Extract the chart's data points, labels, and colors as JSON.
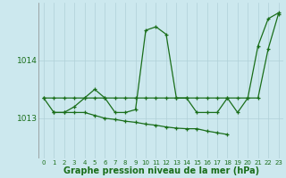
{
  "background_color": "#cce8ee",
  "line_color": "#1a6e1a",
  "grid_color": "#b0d0d8",
  "xlabel": "Graphe pression niveau de la mer (hPa)",
  "xlabel_fontsize": 7,
  "xticks": [
    0,
    1,
    2,
    3,
    4,
    5,
    6,
    7,
    8,
    9,
    10,
    11,
    12,
    13,
    14,
    15,
    16,
    17,
    18,
    19,
    20,
    21,
    22,
    23
  ],
  "ylim": [
    1012.3,
    1015.0
  ],
  "xlim": [
    -0.5,
    23.5
  ],
  "yticks": [
    1013,
    1014
  ],
  "series1_x": [
    0,
    1,
    2,
    3,
    4,
    5,
    6,
    7,
    8,
    9,
    10,
    11,
    12,
    13,
    14,
    15,
    16,
    17,
    18,
    19,
    20,
    21,
    22,
    23
  ],
  "series1_y": [
    1013.35,
    1013.35,
    1013.35,
    1013.35,
    1013.35,
    1013.35,
    1013.35,
    1013.35,
    1013.35,
    1013.35,
    1013.35,
    1013.35,
    1013.35,
    1013.35,
    1013.35,
    1013.35,
    1013.35,
    1013.35,
    1013.35,
    1013.35,
    1013.35,
    1013.35,
    1014.2,
    1014.8
  ],
  "series2_x": [
    0,
    1,
    2,
    3,
    4,
    5,
    6,
    7,
    8,
    9,
    10,
    11,
    12,
    13,
    14,
    15,
    16,
    17,
    18,
    19,
    20,
    21,
    22,
    23
  ],
  "series2_y": [
    1013.35,
    1013.1,
    1013.1,
    1013.2,
    1013.35,
    1013.5,
    1013.35,
    1013.1,
    1013.1,
    1013.15,
    1014.52,
    1014.58,
    1014.45,
    1013.35,
    1013.35,
    1013.1,
    1013.1,
    1013.1,
    1013.35,
    1013.1,
    1013.35,
    1014.25,
    1014.72,
    1014.82
  ],
  "series3_x": [
    1,
    2,
    3,
    4,
    5,
    6,
    7,
    8,
    9,
    10,
    11,
    12,
    13,
    14,
    15,
    16,
    17,
    18
  ],
  "series3_y": [
    1013.1,
    1013.1,
    1013.1,
    1013.1,
    1013.05,
    1013.0,
    1012.98,
    1012.95,
    1012.93,
    1012.9,
    1012.88,
    1012.85,
    1012.83,
    1012.82,
    1012.82,
    1012.78,
    1012.75,
    1012.72
  ],
  "lw": 0.9,
  "markersize": 3.0,
  "markeredgewidth": 0.9
}
